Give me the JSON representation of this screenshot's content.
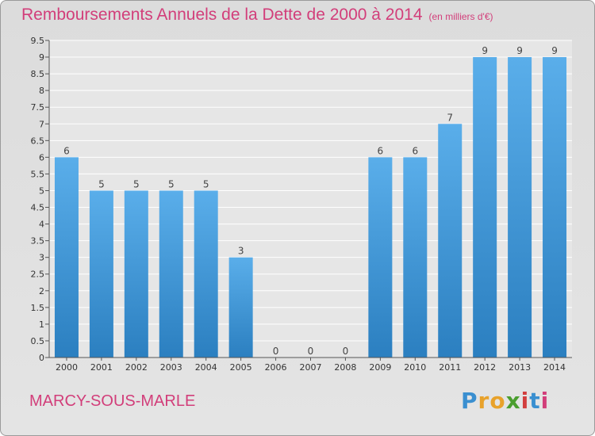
{
  "chart_data": {
    "type": "bar",
    "title": "Remboursements Annuels de la Dette de 2000 à 2014",
    "subtitle": "(en milliers d'€)",
    "categories": [
      "2000",
      "2001",
      "2002",
      "2003",
      "2004",
      "2005",
      "2006",
      "2007",
      "2008",
      "2009",
      "2010",
      "2011",
      "2012",
      "2013",
      "2014"
    ],
    "values": [
      6,
      5,
      5,
      5,
      5,
      3,
      0,
      0,
      0,
      6,
      6,
      7,
      9,
      9,
      9
    ],
    "ylim": [
      0,
      9.5
    ],
    "yticks": [
      "0",
      "0.5",
      "1",
      "1.5",
      "2",
      "2.5",
      "3",
      "3.5",
      "4",
      "4.5",
      "5",
      "5.5",
      "6",
      "6.5",
      "7",
      "7.5",
      "8",
      "8.5",
      "9",
      "9.5"
    ],
    "grid": true,
    "bar_color": "#3d95d8"
  },
  "place": "MARCY-SOUS-MARLE",
  "logo": [
    "P",
    "r",
    "o",
    "x",
    "i",
    "t",
    "i"
  ]
}
